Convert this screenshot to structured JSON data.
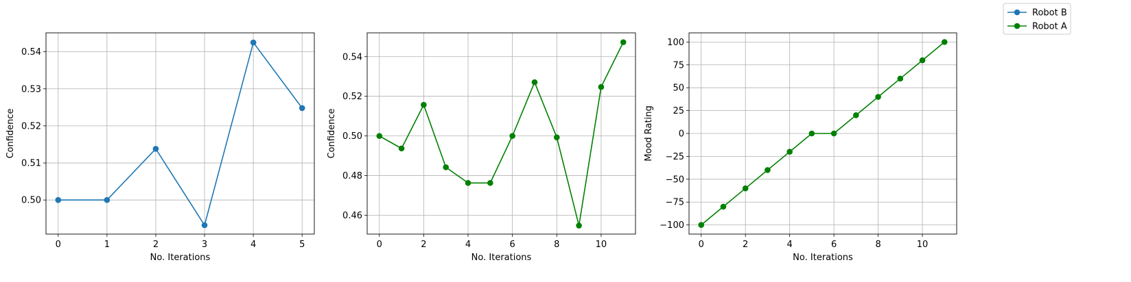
{
  "figure": {
    "legend": {
      "placement": "top-right",
      "entries": [
        {
          "label": "Robot B",
          "color": "#1f77b4",
          "marker": "circle"
        },
        {
          "label": "Robot A",
          "color": "#008000",
          "marker": "circle"
        }
      ]
    }
  },
  "chart_data": [
    {
      "type": "line",
      "title": "",
      "xlabel": "No. Iterations",
      "ylabel": "Confidence",
      "grid": true,
      "xlim": [
        -0.25,
        5.25
      ],
      "ylim": [
        0.4908,
        0.5451
      ],
      "xticks": [
        0,
        1,
        2,
        3,
        4,
        5
      ],
      "xtick_labels": [
        "0",
        "1",
        "2",
        "3",
        "4",
        "5"
      ],
      "yticks": [
        0.5,
        0.51,
        0.52,
        0.53,
        0.54
      ],
      "ytick_labels": [
        "0.50",
        "0.51",
        "0.52",
        "0.53",
        "0.54"
      ],
      "series": [
        {
          "name": "Robot B",
          "color": "#1f77b4",
          "x": [
            0,
            1,
            2,
            3,
            4,
            5
          ],
          "y": [
            0.5,
            0.5,
            0.5138,
            0.4932,
            0.5425,
            0.5248
          ]
        }
      ]
    },
    {
      "type": "line",
      "title": "",
      "xlabel": "No. Iterations",
      "ylabel": "Confidence",
      "grid": true,
      "xlim": [
        -0.55,
        11.55
      ],
      "ylim": [
        0.4505,
        0.552
      ],
      "xticks": [
        0,
        2,
        4,
        6,
        8,
        10
      ],
      "xtick_labels": [
        "0",
        "2",
        "4",
        "6",
        "8",
        "10"
      ],
      "yticks": [
        0.46,
        0.48,
        0.5,
        0.52,
        0.54
      ],
      "ytick_labels": [
        "0.46",
        "0.48",
        "0.50",
        "0.52",
        "0.54"
      ],
      "series": [
        {
          "name": "Robot A",
          "color": "#008000",
          "x": [
            0,
            1,
            2,
            3,
            4,
            5,
            6,
            7,
            8,
            9,
            10,
            11
          ],
          "y": [
            0.5,
            0.4937,
            0.5157,
            0.4842,
            0.4763,
            0.4763,
            0.5,
            0.5271,
            0.4993,
            0.4548,
            0.5247,
            0.5473
          ]
        }
      ]
    },
    {
      "type": "line",
      "title": "",
      "xlabel": "No. Iterations",
      "ylabel": "Mood Rating",
      "grid": true,
      "xlim": [
        -0.55,
        11.55
      ],
      "ylim": [
        -110,
        110
      ],
      "xticks": [
        0,
        2,
        4,
        6,
        8,
        10
      ],
      "xtick_labels": [
        "0",
        "2",
        "4",
        "6",
        "8",
        "10"
      ],
      "yticks": [
        -100,
        -75,
        -50,
        -25,
        0,
        25,
        50,
        75,
        100
      ],
      "ytick_labels": [
        "−100",
        "−75",
        "−50",
        "−25",
        "0",
        "25",
        "50",
        "75",
        "100"
      ],
      "series": [
        {
          "name": "Robot A",
          "color": "#008000",
          "x": [
            0,
            1,
            2,
            3,
            4,
            5,
            6,
            7,
            8,
            9,
            10,
            11
          ],
          "y": [
            -100,
            -80,
            -60,
            -40,
            -20,
            0,
            0,
            20,
            40,
            60,
            80,
            100
          ]
        }
      ]
    }
  ]
}
